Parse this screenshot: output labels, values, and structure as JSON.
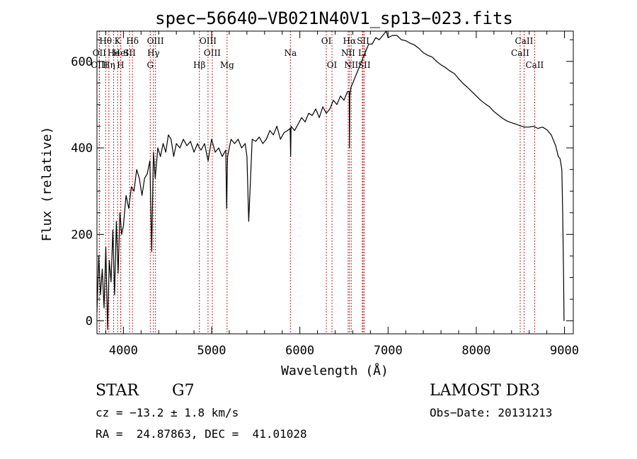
{
  "chart_data": {
    "type": "line",
    "title": "spec−56640−VB021N40V1_sp13−023.fits",
    "xlabel": "Wavelength (Å)",
    "ylabel": "Flux (relative)",
    "xlim": [
      3700,
      9100
    ],
    "ylim": [
      -30,
      670
    ],
    "xticks": [
      4000,
      5000,
      6000,
      7000,
      8000,
      9000
    ],
    "yticks": [
      0,
      200,
      400,
      600
    ],
    "series": [
      {
        "name": "flux",
        "color": "#000000",
        "x": [
          3700,
          3720,
          3740,
          3760,
          3780,
          3800,
          3820,
          3840,
          3860,
          3880,
          3900,
          3920,
          3940,
          3960,
          3980,
          4000,
          4030,
          4060,
          4090,
          4120,
          4150,
          4180,
          4210,
          4240,
          4270,
          4300,
          4320,
          4340,
          4360,
          4390,
          4420,
          4450,
          4480,
          4510,
          4540,
          4570,
          4600,
          4640,
          4680,
          4720,
          4760,
          4800,
          4840,
          4860,
          4880,
          4920,
          4960,
          5000,
          5040,
          5080,
          5120,
          5160,
          5170,
          5180,
          5220,
          5260,
          5300,
          5340,
          5380,
          5400,
          5420,
          5460,
          5500,
          5540,
          5580,
          5620,
          5660,
          5700,
          5740,
          5780,
          5820,
          5860,
          5890,
          5896,
          5900,
          5940,
          5980,
          6020,
          6060,
          6100,
          6140,
          6180,
          6220,
          6260,
          6300,
          6340,
          6380,
          6420,
          6460,
          6500,
          6540,
          6560,
          6563,
          6567,
          6580,
          6620,
          6660,
          6700,
          6740,
          6780,
          6820,
          6860,
          6900,
          6940,
          6980,
          7000,
          7050,
          7100,
          7150,
          7200,
          7250,
          7300,
          7350,
          7400,
          7450,
          7500,
          7550,
          7600,
          7650,
          7700,
          7750,
          7800,
          7850,
          7900,
          7950,
          8000,
          8050,
          8100,
          8150,
          8200,
          8250,
          8300,
          8350,
          8400,
          8450,
          8500,
          8550,
          8600,
          8650,
          8700,
          8750,
          8800,
          8850,
          8900,
          8930,
          8950,
          8970,
          8980,
          8990,
          8995
        ],
        "values": [
          20,
          150,
          60,
          120,
          30,
          170,
          -20,
          140,
          90,
          210,
          60,
          230,
          110,
          250,
          200,
          220,
          290,
          260,
          310,
          300,
          350,
          330,
          290,
          330,
          340,
          370,
          160,
          390,
          330,
          400,
          380,
          410,
          390,
          430,
          420,
          380,
          410,
          400,
          420,
          405,
          415,
          390,
          410,
          400,
          395,
          410,
          370,
          420,
          390,
          400,
          380,
          395,
          260,
          380,
          420,
          410,
          420,
          400,
          410,
          380,
          230,
          420,
          415,
          425,
          410,
          420,
          440,
          430,
          450,
          420,
          435,
          440,
          445,
          380,
          450,
          440,
          455,
          470,
          460,
          480,
          475,
          490,
          470,
          495,
          480,
          490,
          510,
          500,
          520,
          510,
          530,
          530,
          400,
          520,
          540,
          560,
          580,
          600,
          620,
          640,
          640,
          655,
          650,
          660,
          670,
          655,
          660,
          660,
          650,
          648,
          642,
          638,
          630,
          620,
          614,
          610,
          600,
          592,
          586,
          578,
          572,
          560,
          549,
          540,
          530,
          520,
          510,
          502,
          495,
          484,
          476,
          468,
          462,
          458,
          455,
          451,
          448,
          448,
          450,
          445,
          448,
          442,
          430,
          405,
          380,
          375,
          350,
          250,
          100,
          0
        ]
      }
    ],
    "lines": [
      {
        "label": "Hθ",
        "wavelength": 3798,
        "row": 1
      },
      {
        "label": "OII",
        "wavelength": 3727,
        "row": 2
      },
      {
        "label": "OIII",
        "wavelength": 3727,
        "row": 3
      },
      {
        "label": "He",
        "wavelength": 3889,
        "row": 2
      },
      {
        "label": "Hη",
        "wavelength": 3835,
        "row": 3
      },
      {
        "label": "K",
        "wavelength": 3934,
        "row": 1
      },
      {
        "label": "HeI",
        "wavelength": 3970,
        "row": 2
      },
      {
        "label": "H",
        "wavelength": 3968,
        "row": 3
      },
      {
        "label": "Hδ",
        "wavelength": 4102,
        "row": 1
      },
      {
        "label": "SII",
        "wavelength": 4069,
        "row": 2
      },
      {
        "label": "OIII",
        "wavelength": 4363,
        "row": 1
      },
      {
        "label": "Hγ",
        "wavelength": 4340,
        "row": 2
      },
      {
        "label": "G",
        "wavelength": 4304,
        "row": 3
      },
      {
        "label": "Hβ",
        "wavelength": 4861,
        "row": 3
      },
      {
        "label": "OIII",
        "wavelength": 4959,
        "row": 1
      },
      {
        "label": "OIII",
        "wavelength": 5007,
        "row": 2
      },
      {
        "label": "Mg",
        "wavelength": 5175,
        "row": 3
      },
      {
        "label": "Na",
        "wavelength": 5893,
        "row": 2
      },
      {
        "label": "OI",
        "wavelength": 6300,
        "row": 1
      },
      {
        "label": "OI",
        "wavelength": 6364,
        "row": 3
      },
      {
        "label": "Hα",
        "wavelength": 6563,
        "row": 1
      },
      {
        "label": "NII",
        "wavelength": 6548,
        "row": 2
      },
      {
        "label": "NII",
        "wavelength": 6583,
        "row": 3
      },
      {
        "label": "SII",
        "wavelength": 6717,
        "row": 1
      },
      {
        "label": "Li",
        "wavelength": 6708,
        "row": 2
      },
      {
        "label": "SII",
        "wavelength": 6731,
        "row": 3
      },
      {
        "label": "CaII",
        "wavelength": 8542,
        "row": 1
      },
      {
        "label": "CaII",
        "wavelength": 8498,
        "row": 2
      },
      {
        "label": "CaII",
        "wavelength": 8662,
        "row": 3
      }
    ],
    "line_color": "#cc2222"
  },
  "info": {
    "object_class": "STAR",
    "subclass": "G7",
    "survey": "LAMOST DR3",
    "redshift": "cz = −13.2 ± 1.8 km/s",
    "coords": "RA =  24.87863, DEC =  41.01028",
    "obs_date": "Obs−Date: 20131213"
  }
}
